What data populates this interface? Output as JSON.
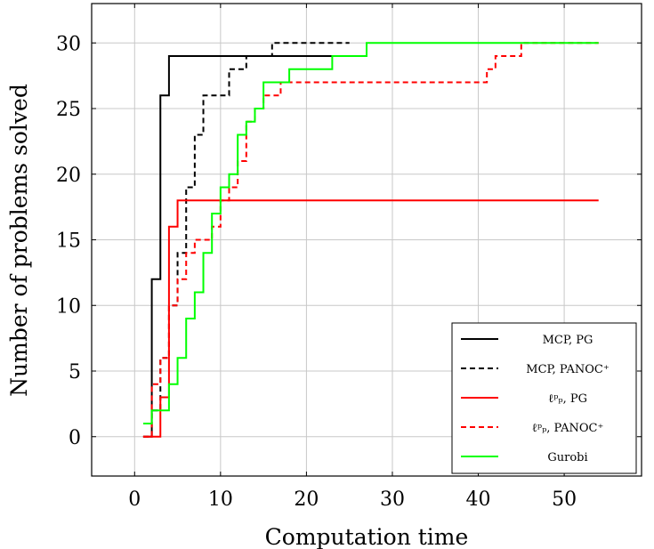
{
  "chart_data": {
    "type": "line",
    "step": true,
    "xlabel": "Computation time",
    "ylabel": "Number of problems solved",
    "xlim": [
      -5,
      59
    ],
    "ylim": [
      -3,
      33
    ],
    "x_ticks": [
      0,
      10,
      20,
      30,
      40,
      50
    ],
    "y_ticks": [
      0,
      5,
      10,
      15,
      20,
      25,
      30
    ],
    "grid": true,
    "legend_position": "bottom-right",
    "series": [
      {
        "name": "MCP, PG",
        "color": "#000000",
        "dash": "solid",
        "x": [
          1,
          2,
          3,
          4,
          23
        ],
        "y": [
          0,
          12,
          26,
          29,
          29
        ]
      },
      {
        "name": "MCP, PANOC⁺",
        "color": "#000000",
        "dash": "dashed",
        "x": [
          1,
          2,
          3,
          4,
          5,
          6,
          7,
          8,
          10,
          11,
          13,
          16,
          25
        ],
        "y": [
          0,
          2,
          6,
          10,
          14,
          19,
          23,
          26,
          26,
          28,
          29,
          30,
          30
        ]
      },
      {
        "name": "ℓᵖₚ, PG",
        "color": "#ff0000",
        "dash": "solid",
        "x": [
          1,
          3,
          4,
          5,
          54
        ],
        "y": [
          0,
          3,
          16,
          18,
          18
        ]
      },
      {
        "name": "ℓᵖₚ, PANOC⁺",
        "color": "#ff0000",
        "dash": "dashed",
        "x": [
          1,
          2,
          3,
          4,
          5,
          6,
          7,
          9,
          10,
          11,
          12,
          13,
          14,
          15,
          17,
          40,
          41,
          42,
          44,
          45,
          54
        ],
        "y": [
          0,
          4,
          6,
          10,
          12,
          14,
          15,
          16,
          18,
          19,
          21,
          24,
          25,
          26,
          27,
          27,
          28,
          29,
          29,
          30,
          30
        ]
      },
      {
        "name": "Gurobi",
        "color": "#00ff00",
        "dash": "solid",
        "x": [
          1,
          2,
          4,
          5,
          6,
          7,
          8,
          9,
          10,
          11,
          12,
          13,
          14,
          15,
          16,
          18,
          23,
          25,
          27,
          54
        ],
        "y": [
          1,
          2,
          4,
          6,
          9,
          11,
          14,
          17,
          19,
          20,
          23,
          24,
          25,
          27,
          27,
          28,
          29,
          29,
          30,
          30
        ]
      }
    ]
  }
}
